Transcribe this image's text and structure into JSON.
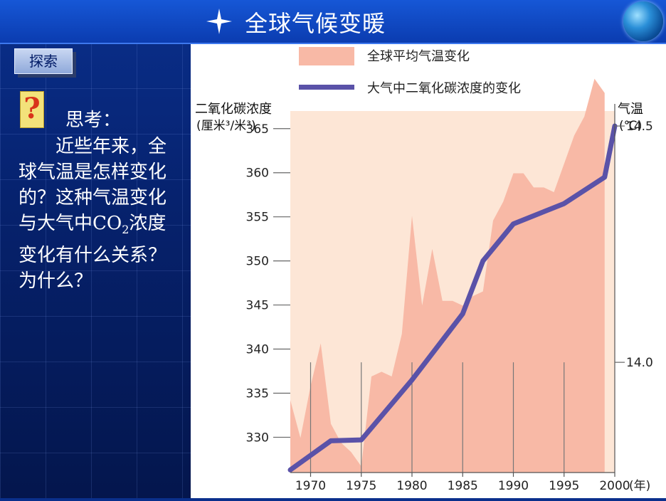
{
  "header": {
    "title": "全球气候变暖",
    "star_icon": "four-point-star-icon",
    "globe_icon": "globe-icon"
  },
  "sidebar": {
    "explore_label": "探索",
    "question_icon": "question-mark-icon",
    "think_heading": "思考：",
    "lines": [
      "　　近些年来，全",
      "球气温是怎样变化",
      "的？这种气温变化",
      "与大气中CO",
      "浓度",
      "变化有什么关系？",
      "为什么？"
    ],
    "subscript": "2"
  },
  "chart_data": {
    "type": "area+line",
    "legend": [
      "全球平均气温变化",
      "大气中二氧化碳浓度的变化"
    ],
    "left_axis_title": "二氧化碳浓度",
    "left_axis_unit": "(厘米³/米³)",
    "right_axis_title": "气温",
    "right_axis_unit": "(℃)",
    "x_axis_unit": "(年)",
    "x_ticks": [
      1970,
      1975,
      1980,
      1985,
      1990,
      1995,
      2000
    ],
    "y_left_ticks": [
      330,
      335,
      340,
      345,
      350,
      355,
      360,
      365
    ],
    "y_right_ticks": [
      "14.0",
      "14.5"
    ],
    "xlim": [
      1968,
      2000
    ],
    "ylim_left": [
      326,
      367
    ],
    "colors": {
      "temperature_fill": "#f8b9a6",
      "co2_line": "#5a52a8",
      "plot_bg": "#fde6d6"
    },
    "series": [
      {
        "name": "全球平均气温变化",
        "axis": "right",
        "x": [
          1968,
          1969,
          1970,
          1971,
          1972,
          1973,
          1974,
          1975,
          1976,
          1977,
          1978,
          1979,
          1980,
          1981,
          1982,
          1983,
          1984,
          1985,
          1986,
          1987,
          1988,
          1989,
          1990,
          1991,
          1992,
          1993,
          1994,
          1995,
          1996,
          1997,
          1998,
          1999
        ],
        "values": [
          13.92,
          13.84,
          13.95,
          14.04,
          13.87,
          13.83,
          13.81,
          13.78,
          13.97,
          13.98,
          13.97,
          14.06,
          14.31,
          14.12,
          14.24,
          14.13,
          14.13,
          14.12,
          14.14,
          14.15,
          14.3,
          14.34,
          14.4,
          14.4,
          14.37,
          14.37,
          14.36,
          14.42,
          14.48,
          14.52,
          14.6,
          14.57
        ]
      },
      {
        "name": "大气中二氧化碳浓度的变化",
        "axis": "left",
        "x": [
          1968,
          1972,
          1975,
          1980,
          1985,
          1987,
          1990,
          1995,
          1999,
          2000
        ],
        "values": [
          326.3,
          329.6,
          329.7,
          336.5,
          344.0,
          350.0,
          354.2,
          356.5,
          359.5,
          365.3
        ]
      }
    ]
  }
}
